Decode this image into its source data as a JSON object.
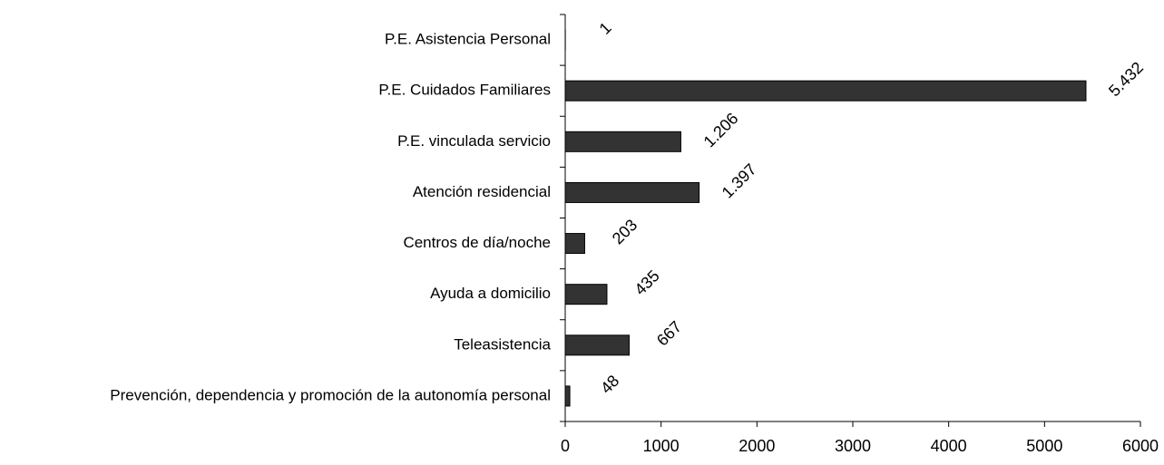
{
  "chart_data": {
    "type": "bar",
    "orientation": "horizontal",
    "categories": [
      "P.E. Asistencia Personal",
      "P.E. Cuidados Familiares",
      "P.E. vinculada servicio",
      "Atención residencial",
      "Centros de día/noche",
      "Ayuda a domicilio",
      "Teleasistencia",
      "Prevención, dependencia y promoción de la autonomía personal"
    ],
    "values": [
      1,
      5432,
      1206,
      1397,
      203,
      435,
      667,
      48
    ],
    "value_labels": [
      "1",
      "5.432",
      "1.206",
      "1.397",
      "203",
      "435",
      "667",
      "48"
    ],
    "color": "#333333",
    "xlim": [
      0,
      6000
    ],
    "xticks": [
      0,
      1000,
      2000,
      3000,
      4000,
      5000,
      6000
    ]
  }
}
